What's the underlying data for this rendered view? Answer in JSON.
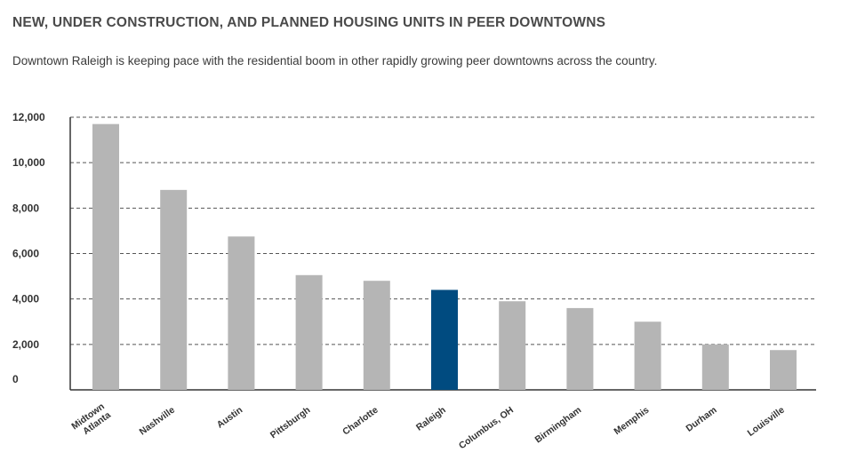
{
  "title": "NEW, UNDER CONSTRUCTION, AND PLANNED HOUSING UNITS IN PEER DOWNTOWNS",
  "subtitle": "Downtown Raleigh is keeping pace with the residential boom in other rapidly growing peer downtowns across the country.",
  "colors": {
    "bar": "#b5b5b5",
    "highlight": "#004b80",
    "grid": "#555555"
  },
  "chart_data": {
    "type": "bar",
    "title": "NEW, UNDER CONSTRUCTION, AND PLANNED HOUSING UNITS IN PEER DOWNTOWNS",
    "xlabel": "",
    "ylabel": "",
    "ylim": [
      0,
      12000
    ],
    "yticks": [
      0,
      2000,
      4000,
      6000,
      8000,
      10000,
      12000
    ],
    "ytick_labels": [
      "0",
      "2,000",
      "4,000",
      "6,000",
      "8,000",
      "10,000",
      "12,000"
    ],
    "grid": true,
    "categories": [
      "Midtown Atlanta",
      "Nashville",
      "Austin",
      "Pittsburgh",
      "Charlotte",
      "Raleigh",
      "Columbus, OH",
      "Birmingham",
      "Memphis",
      "Durham",
      "Louisville"
    ],
    "category_labels": [
      [
        "Midtown",
        "Atlanta"
      ],
      [
        "Nashville"
      ],
      [
        "Austin"
      ],
      [
        "Pittsburgh"
      ],
      [
        "Charlotte"
      ],
      [
        "Raleigh"
      ],
      [
        "Columbus, OH"
      ],
      [
        "Birmingham"
      ],
      [
        "Memphis"
      ],
      [
        "Durham"
      ],
      [
        "Louisville"
      ]
    ],
    "values": [
      11700,
      8800,
      6750,
      5050,
      4800,
      4400,
      3900,
      3600,
      3000,
      2000,
      1750
    ],
    "highlight": "Raleigh"
  }
}
